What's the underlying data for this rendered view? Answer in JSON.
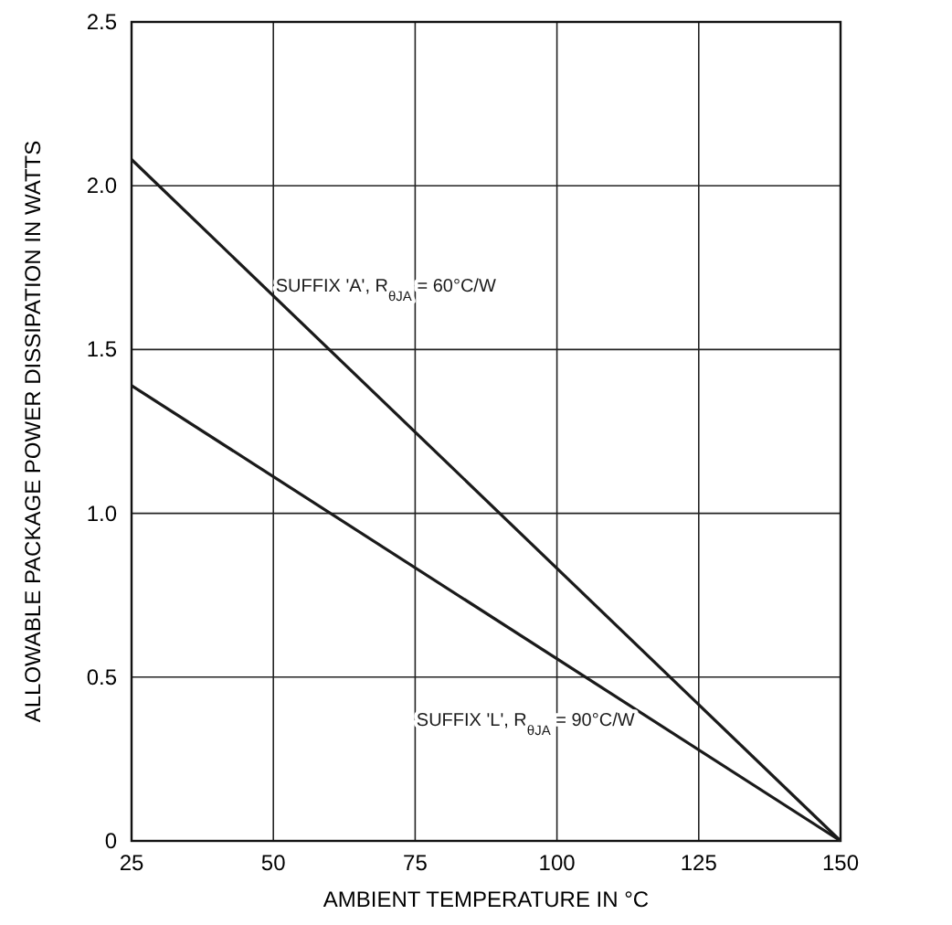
{
  "chart_data": {
    "type": "line",
    "xlabel": "AMBIENT TEMPERATURE IN °C",
    "ylabel": "ALLOWABLE PACKAGE POWER DISSIPATION IN WATTS",
    "x": [
      25,
      150
    ],
    "series": [
      {
        "name": "SUFFIX 'A', R$_{θJA}$ = 60°C/W",
        "color": "#1a1a1a",
        "values": [
          2.08,
          0
        ]
      },
      {
        "name": "SUFFIX 'L', R$_{θJA}$ = 90°C/W",
        "color": "#1a1a1a",
        "values": [
          1.39,
          0
        ]
      }
    ],
    "xlim": [
      25,
      150
    ],
    "xticks": [
      25,
      50,
      75,
      100,
      125,
      150
    ],
    "ylim": [
      0,
      2.5
    ],
    "yticks": [
      0,
      0.5,
      {
        "value": 1,
        "label": "1.0"
      },
      1.5,
      {
        "value": 2,
        "label": "2.0"
      },
      2.5
    ],
    "grid": true,
    "marker": "none",
    "line_style": "solid"
  }
}
